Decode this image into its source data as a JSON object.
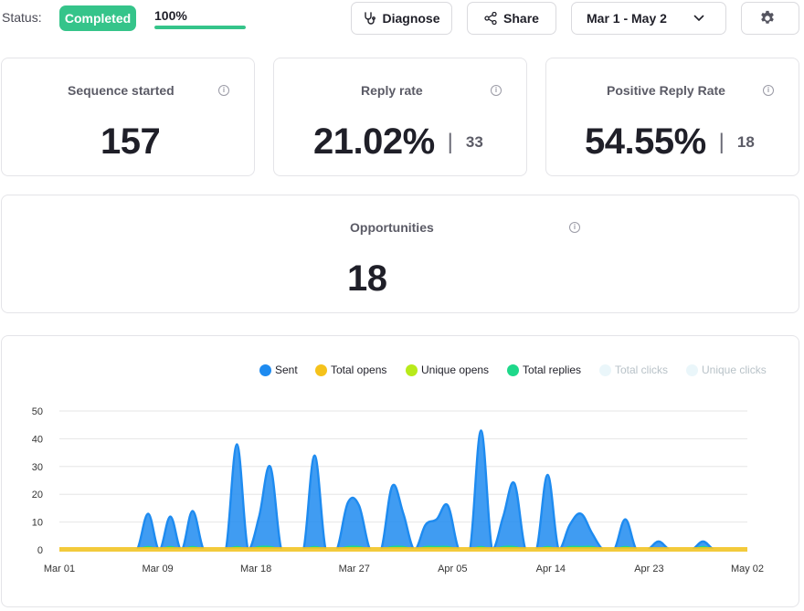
{
  "header": {
    "status_label": "Status:",
    "status_badge": "Completed",
    "progress_text": "100%",
    "progress_value": 1.0,
    "diagnose_label": "Diagnose",
    "share_label": "Share",
    "date_range": "Mar 1 - May 2"
  },
  "cards": {
    "sequence_started": {
      "title": "Sequence started",
      "value": "157"
    },
    "reply_rate": {
      "title": "Reply rate",
      "value": "21.02%",
      "sub": "33"
    },
    "positive_reply_rate": {
      "title": "Positive Reply Rate",
      "value": "54.55%",
      "sub": "18"
    },
    "opportunities": {
      "title": "Opportunities",
      "value": "18"
    }
  },
  "icons": {
    "info": "i"
  },
  "colors": {
    "accent": "#35c48a",
    "sent": "#1e8bf0",
    "total_opens": "#f5c21b",
    "unique_opens": "#b8ea1a",
    "total_replies": "#1ed88a",
    "total_clicks": "#eaf6fa",
    "unique_clicks": "#eaf6fa"
  },
  "chart_data": {
    "type": "area",
    "legend": [
      "Sent",
      "Total opens",
      "Unique opens",
      "Total replies",
      "Total clicks",
      "Unique clicks"
    ],
    "x_tick_labels": [
      "Mar 01",
      "Mar 09",
      "Mar 18",
      "Mar 27",
      "Apr 05",
      "Apr 14",
      "Apr 23",
      "May 02"
    ],
    "y_ticks": [
      0,
      10,
      20,
      30,
      40,
      50
    ],
    "ylim": [
      0,
      50
    ],
    "x": [
      "Mar 01",
      "Mar 02",
      "Mar 03",
      "Mar 04",
      "Mar 05",
      "Mar 06",
      "Mar 07",
      "Mar 08",
      "Mar 09",
      "Mar 10",
      "Mar 11",
      "Mar 12",
      "Mar 13",
      "Mar 14",
      "Mar 15",
      "Mar 16",
      "Mar 17",
      "Mar 18",
      "Mar 19",
      "Mar 20",
      "Mar 21",
      "Mar 22",
      "Mar 23",
      "Mar 24",
      "Mar 25",
      "Mar 26",
      "Mar 27",
      "Mar 28",
      "Mar 29",
      "Mar 30",
      "Mar 31",
      "Apr 01",
      "Apr 02",
      "Apr 03",
      "Apr 04",
      "Apr 05",
      "Apr 06",
      "Apr 07",
      "Apr 08",
      "Apr 09",
      "Apr 10",
      "Apr 11",
      "Apr 12",
      "Apr 13",
      "Apr 14",
      "Apr 15",
      "Apr 16",
      "Apr 17",
      "Apr 18",
      "Apr 19",
      "Apr 20",
      "Apr 21",
      "Apr 22",
      "Apr 23",
      "Apr 24",
      "Apr 25",
      "Apr 26",
      "Apr 27",
      "Apr 28",
      "Apr 29",
      "Apr 30",
      "May 01",
      "May 02"
    ],
    "series": [
      {
        "name": "Sent",
        "values": [
          0,
          0,
          0,
          0,
          0,
          0,
          0,
          0,
          13,
          0,
          12,
          0,
          14,
          0,
          0,
          0,
          38,
          0,
          12,
          30,
          0,
          0,
          0,
          34,
          0,
          0,
          17,
          16,
          0,
          0,
          23,
          13,
          0,
          9,
          11,
          16,
          0,
          0,
          43,
          0,
          12,
          24,
          0,
          0,
          27,
          0,
          9,
          13,
          6,
          0,
          0,
          11,
          0,
          0,
          3,
          0,
          0,
          0,
          3,
          0,
          0,
          0,
          0
        ]
      },
      {
        "name": "Total opens",
        "values": [
          0,
          0,
          0,
          0,
          0,
          0,
          0,
          0,
          0,
          0,
          0,
          0,
          0,
          0,
          0,
          0,
          0,
          0,
          0,
          0,
          0,
          0,
          0,
          0,
          0,
          0,
          0,
          0,
          0,
          0,
          0,
          0,
          0,
          0,
          0,
          0,
          0,
          0,
          0,
          0,
          0,
          0,
          0,
          0,
          0,
          0,
          0,
          0,
          0,
          0,
          0,
          0,
          0,
          0,
          0,
          0,
          0,
          0,
          0,
          0,
          0,
          0,
          0
        ]
      },
      {
        "name": "Unique opens",
        "values": [
          0,
          0,
          0,
          0,
          0,
          0,
          0,
          0,
          0,
          0,
          0,
          0,
          0,
          0,
          0,
          0,
          0,
          0,
          0,
          0,
          0,
          0,
          0,
          0,
          0,
          0,
          0,
          0,
          0,
          0,
          0,
          0,
          0,
          0,
          0,
          0,
          0,
          0,
          0,
          0,
          0,
          0,
          0,
          0,
          0,
          0,
          0,
          0,
          0,
          0,
          0,
          0,
          0,
          0,
          0,
          0,
          0,
          0,
          0,
          0,
          0,
          0,
          0
        ]
      },
      {
        "name": "Total replies",
        "values": [
          0,
          0,
          0,
          0,
          0,
          0,
          0,
          0,
          1,
          0,
          1,
          0,
          1,
          0,
          0,
          0,
          1,
          0,
          1,
          1,
          0,
          0,
          0,
          1,
          0,
          0,
          1,
          1,
          0,
          0,
          1,
          1,
          0,
          1,
          1,
          1,
          0,
          0,
          1,
          0,
          1,
          1,
          0,
          0,
          1,
          0,
          1,
          1,
          1,
          0,
          0,
          1,
          0,
          0,
          0,
          0,
          0,
          0,
          1,
          0,
          0,
          0,
          0
        ]
      },
      {
        "name": "Total clicks",
        "values": [
          0,
          0,
          0,
          0,
          0,
          0,
          0,
          0,
          0,
          0,
          0,
          0,
          0,
          0,
          0,
          0,
          0,
          0,
          0,
          0,
          0,
          0,
          0,
          0,
          0,
          0,
          0,
          0,
          0,
          0,
          0,
          0,
          0,
          0,
          0,
          0,
          0,
          0,
          0,
          0,
          0,
          0,
          0,
          0,
          0,
          0,
          0,
          0,
          0,
          0,
          0,
          0,
          0,
          0,
          0,
          0,
          0,
          0,
          0,
          0,
          0,
          0,
          0
        ]
      },
      {
        "name": "Unique clicks",
        "values": [
          0,
          0,
          0,
          0,
          0,
          0,
          0,
          0,
          0,
          0,
          0,
          0,
          0,
          0,
          0,
          0,
          0,
          0,
          0,
          0,
          0,
          0,
          0,
          0,
          0,
          0,
          0,
          0,
          0,
          0,
          0,
          0,
          0,
          0,
          0,
          0,
          0,
          0,
          0,
          0,
          0,
          0,
          0,
          0,
          0,
          0,
          0,
          0,
          0,
          0,
          0,
          0,
          0,
          0,
          0,
          0,
          0,
          0,
          0,
          0,
          0,
          0,
          0
        ]
      }
    ]
  }
}
